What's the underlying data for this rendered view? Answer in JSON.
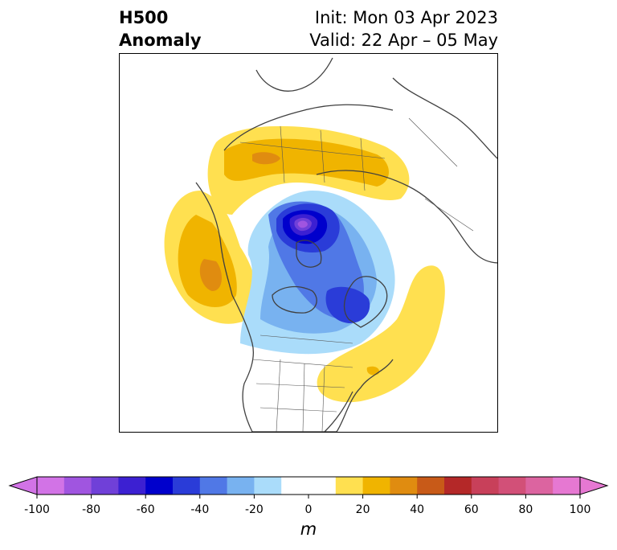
{
  "title": {
    "left_line1": "H500",
    "left_line2": "Anomaly",
    "right_line1": "Init: Mon 03 Apr 2023",
    "right_line2": "Valid: 22 Apr – 05 May"
  },
  "map": {
    "projection": "polar-stereographic (North Pole)",
    "field": "500 hPa geopotential height anomaly",
    "features": [
      {
        "name": "ridge-western-north-america",
        "sign": "positive",
        "max_m": 40
      },
      {
        "name": "ridge-siberia-arctic",
        "sign": "positive",
        "max_m": 40
      },
      {
        "name": "ridge-western-atlantic",
        "sign": "positive",
        "max_m": 30
      },
      {
        "name": "low-arctic-ocean",
        "sign": "negative",
        "min_m": -90
      },
      {
        "name": "low-hudson-bay-labrador",
        "sign": "negative",
        "min_m": -60
      },
      {
        "name": "trough-canada-northern-us",
        "sign": "negative",
        "min_m": -30
      }
    ]
  },
  "colorbar": {
    "unit": "m",
    "ticks": [
      "-100",
      "-80",
      "-60",
      "-40",
      "-20",
      "0",
      "20",
      "40",
      "60",
      "80",
      "100"
    ],
    "levels": [
      -100,
      -90,
      -80,
      -70,
      -60,
      -50,
      -40,
      -30,
      -20,
      -10,
      10,
      20,
      30,
      40,
      50,
      60,
      70,
      80,
      90,
      100
    ],
    "colors": [
      "#d273e6",
      "#a055e0",
      "#7040d8",
      "#3c20d2",
      "#0000cc",
      "#2a3cd8",
      "#5078e6",
      "#78b2f0",
      "#aadcfa",
      "#ffffff",
      "#ffe050",
      "#f0b400",
      "#e08c10",
      "#c85a18",
      "#b42828",
      "#c8405a",
      "#d25078",
      "#dc64a0",
      "#e678d2"
    ],
    "under_color": "#d273e6",
    "over_color": "#e678d2"
  }
}
